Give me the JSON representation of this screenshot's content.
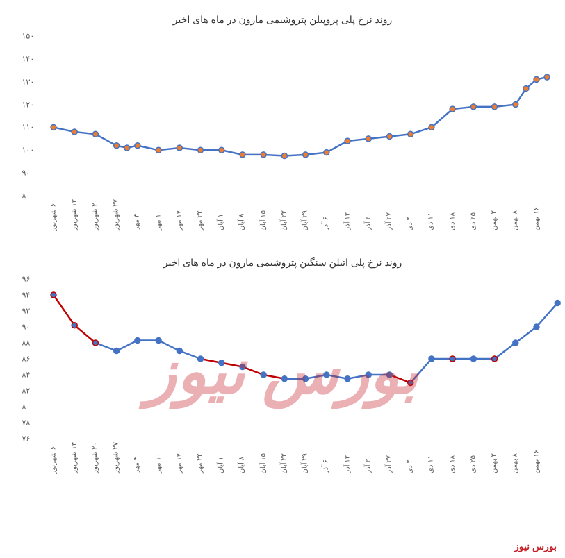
{
  "chart1": {
    "type": "line",
    "title": "روند نرخ پلی پروپیلن پتروشیمی مارون در ماه های اخیر",
    "title_fontsize": 14,
    "title_color": "#333333",
    "ylim": [
      80,
      150
    ],
    "ytick_step": 10,
    "yticks": [
      80,
      90,
      100,
      110,
      120,
      130,
      140,
      150
    ],
    "ytick_labels": [
      "۸۰",
      "۹۰",
      "۱۰۰",
      "۱۱۰",
      "۱۲۰",
      "۱۳۰",
      "۱۴۰",
      "۱۵۰"
    ],
    "categories": [
      "۶ شهریور",
      "۱۳ شهریور",
      "۲۰ شهریور",
      "۲۷ شهریور",
      "۳ مهر",
      "۱۰ مهر",
      "۱۷ مهر",
      "۲۴ مهر",
      "۱ آبان",
      "۸ آبان",
      "۱۵ آبان",
      "۲۲ آبان",
      "۲۹ آبان",
      "۶ آذر",
      "۱۳ آذر",
      "۲۰ آذر",
      "۲۷ آذر",
      "۴ دی",
      "۱۱ دی",
      "۱۸ دی",
      "۲۵ دی",
      "۲ بهمن",
      "۸ بهمن",
      "۱۶ بهمن"
    ],
    "values": [
      110,
      108,
      107,
      102,
      101,
      102,
      100,
      101,
      100,
      100,
      98,
      98,
      97.5,
      98,
      99,
      104,
      105,
      106,
      107,
      110,
      118,
      119,
      119,
      120,
      127,
      131,
      132
    ],
    "x_values": [
      0,
      1,
      2,
      3,
      3.5,
      4,
      5,
      6,
      7,
      8,
      9,
      10,
      11,
      12,
      13,
      14,
      15,
      16,
      17,
      18,
      19,
      20,
      21,
      22,
      22.5,
      23,
      23.5
    ],
    "line_color": "#4472c4",
    "line_width": 2.5,
    "marker_color": "#ed7d31",
    "marker_border": "#4472c4",
    "marker_size": 4,
    "background_color": "#ffffff",
    "label_color": "#595959",
    "label_fontsize": 11
  },
  "chart2": {
    "type": "line",
    "title": "روند نرخ پلی اتیلن سنگین پتروشیمی مارون در ماه های اخیر",
    "title_fontsize": 14,
    "title_color": "#333333",
    "ylim": [
      76,
      96
    ],
    "ytick_step": 2,
    "yticks": [
      76,
      78,
      80,
      82,
      84,
      86,
      88,
      90,
      92,
      94,
      96
    ],
    "ytick_labels": [
      "۷۶",
      "۷۸",
      "۸۰",
      "۸۲",
      "۸۴",
      "۸۶",
      "۸۸",
      "۹۰",
      "۹۲",
      "۹۴",
      "۹۶"
    ],
    "categories": [
      "۶ شهریور",
      "۱۳ شهریور",
      "۲۰ شهریور",
      "۲۷ شهریور",
      "۳ مهر",
      "۱۰ مهر",
      "۱۷ مهر",
      "۲۴ مهر",
      "۱ آبان",
      "۸ آبان",
      "۱۵ آبان",
      "۲۲ آبان",
      "۲۹ آبان",
      "۶ آذر",
      "۱۳ آذر",
      "۲۰ آذر",
      "۲۷ آذر",
      "۴ دی",
      "۱۱ دی",
      "۱۸ دی",
      "۲۵ دی",
      "۲ بهمن",
      "۸ بهمن",
      "۱۶ بهمن"
    ],
    "values": [
      94,
      90.2,
      88,
      87,
      88.3,
      88.3,
      87,
      86,
      85.5,
      85,
      84,
      83.5,
      83.5,
      84,
      83.5,
      84,
      84,
      83,
      86,
      86,
      86,
      86,
      88,
      90,
      93
    ],
    "x_values": [
      0,
      1,
      2,
      3,
      4,
      5,
      6,
      7,
      8,
      9,
      10,
      11,
      12,
      13,
      14,
      15,
      16,
      17,
      18,
      19,
      20,
      21,
      22,
      23,
      24
    ],
    "segments": [
      {
        "from": 0,
        "to": 2,
        "color": "#c00000"
      },
      {
        "from": 2,
        "to": 7,
        "color": "#4472c4"
      },
      {
        "from": 7,
        "to": 11,
        "color": "#c00000"
      },
      {
        "from": 11,
        "to": 16,
        "color": "#4472c4"
      },
      {
        "from": 16,
        "to": 17,
        "color": "#c00000"
      },
      {
        "from": 17,
        "to": 24,
        "color": "#4472c4"
      }
    ],
    "line_width": 2.5,
    "marker_color": "#4472c4",
    "marker_border": "#4472c4",
    "marker_red_border": "#c00000",
    "red_marker_indices": [
      0,
      1,
      2,
      17,
      19,
      21
    ],
    "marker_size": 4,
    "background_color": "#ffffff",
    "label_color": "#595959",
    "label_fontsize": 11
  },
  "footer_text": "بورس نیوز",
  "footer_color": "#c42127",
  "watermark_text": "بورس نیوز",
  "watermark_color": "#c42127"
}
